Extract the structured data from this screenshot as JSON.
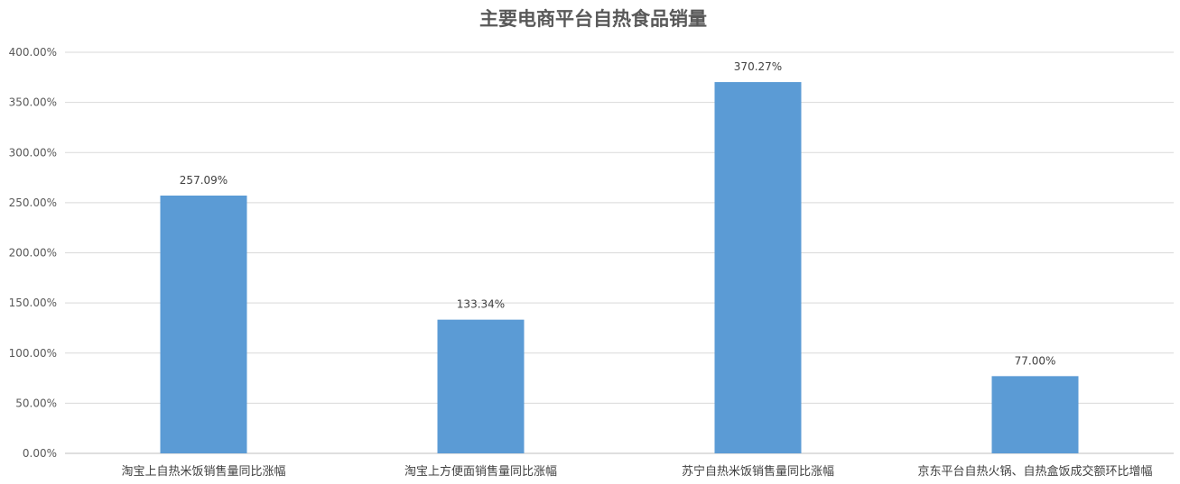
{
  "chart_data": {
    "type": "bar",
    "title": "主要电商平台自热食品销量",
    "categories": [
      "淘宝上自热米饭销售量同比涨幅",
      "淘宝上方便面销售量同比涨幅",
      "苏宁自热米饭销售量同比涨幅",
      "京东平台自热火锅、自热盒饭成交额环比增幅"
    ],
    "values": [
      257.09,
      133.34,
      370.27,
      77.0
    ],
    "data_labels": [
      "257.09%",
      "133.34%",
      "370.27%",
      "77.00%"
    ],
    "ylim": [
      0,
      400
    ],
    "yticks": [
      "0.00%",
      "50.00%",
      "100.00%",
      "150.00%",
      "200.00%",
      "250.00%",
      "300.00%",
      "350.00%",
      "400.00%"
    ],
    "grid": true,
    "legend": "none",
    "bar_color": "#5B9BD5"
  }
}
